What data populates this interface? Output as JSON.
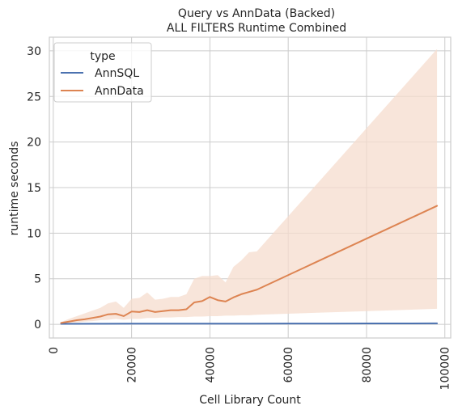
{
  "chart_data": {
    "type": "line",
    "title": "Query vs AnnData (Backed)",
    "subtitle": "ALL FILTERS Runtime Combined",
    "xlabel": "Cell Library Count",
    "ylabel": "runtime seconds",
    "xlim": [
      -1000,
      101500
    ],
    "ylim": [
      -1.5,
      31.5
    ],
    "xticks": [
      0,
      20000,
      40000,
      60000,
      80000,
      100000
    ],
    "yticks": [
      0,
      5,
      10,
      15,
      20,
      25,
      30
    ],
    "grid": true,
    "legend": {
      "title": "type",
      "placement": "top-left"
    },
    "colors": {
      "AnnSQL": "#4c72b0",
      "AnnData": "#dd8452",
      "AnnData_band": "#f6dccd"
    },
    "series": [
      {
        "name": "AnnSQL",
        "x": [
          2000,
          10000,
          20000,
          30000,
          40000,
          50000,
          60000,
          70000,
          80000,
          90000,
          98000
        ],
        "y": [
          0.05,
          0.06,
          0.07,
          0.07,
          0.08,
          0.08,
          0.09,
          0.09,
          0.1,
          0.1,
          0.11
        ]
      },
      {
        "name": "AnnData",
        "x": [
          2000,
          4000,
          6000,
          8000,
          10000,
          12000,
          14000,
          16000,
          18000,
          20000,
          22000,
          24000,
          26000,
          28000,
          30000,
          32000,
          34000,
          36000,
          38000,
          40000,
          42000,
          44000,
          46000,
          48000,
          50000,
          52000,
          98000
        ],
        "y": [
          0.15,
          0.3,
          0.45,
          0.55,
          0.7,
          0.85,
          1.1,
          1.15,
          0.9,
          1.4,
          1.35,
          1.55,
          1.35,
          1.45,
          1.55,
          1.55,
          1.65,
          2.4,
          2.55,
          3.0,
          2.65,
          2.5,
          2.95,
          3.3,
          3.55,
          3.8,
          13.0
        ],
        "ci_upper": [
          0.25,
          0.6,
          0.9,
          1.2,
          1.5,
          1.8,
          2.3,
          2.5,
          1.8,
          2.8,
          2.9,
          3.5,
          2.7,
          2.8,
          3.0,
          3.0,
          3.3,
          5.0,
          5.3,
          5.3,
          5.4,
          4.6,
          6.3,
          7.0,
          7.9,
          8.0,
          30.2
        ],
        "ci_lower": [
          0.1,
          0.15,
          0.2,
          0.3,
          0.35,
          0.45,
          0.5,
          0.6,
          0.5,
          0.6,
          0.6,
          0.7,
          0.7,
          0.75,
          0.75,
          0.8,
          0.8,
          0.85,
          0.85,
          0.9,
          0.9,
          0.95,
          0.95,
          1.0,
          1.0,
          1.05,
          1.7
        ]
      }
    ]
  }
}
